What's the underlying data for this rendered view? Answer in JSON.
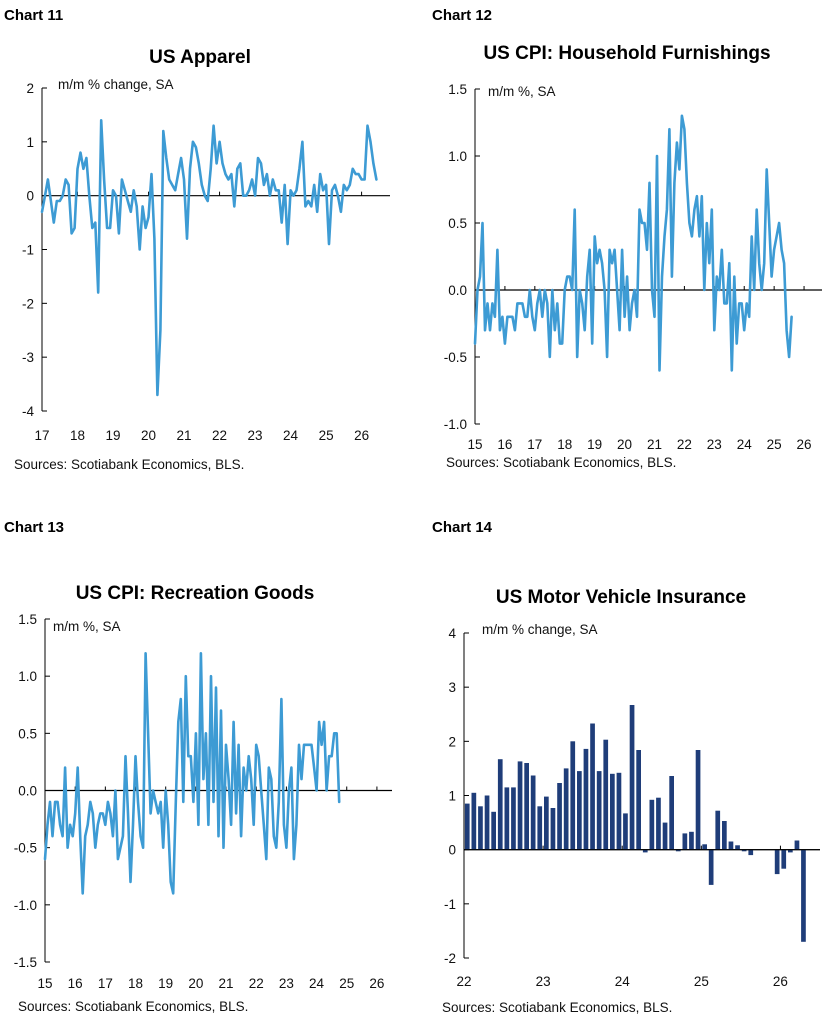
{
  "charts": [
    {
      "label": "Chart 11",
      "title": "US Apparel",
      "unit": "m/m % change, SA",
      "source": "Sources: Scotiabank Economics, BLS."
    },
    {
      "label": "Chart 12",
      "title": "US CPI: Household Furnishings",
      "unit": "m/m %, SA",
      "source": "Sources: Scotiabank Economics, BLS."
    },
    {
      "label": "Chart 13",
      "title": "US CPI: Recreation Goods",
      "unit": "m/m %, SA",
      "source": "Sources: Scotiabank Economics, BLS."
    },
    {
      "label": "Chart 14",
      "title": "US Motor Vehicle Insurance",
      "unit": "m/m % change, SA",
      "source": "Sources: Scotiabank Economics, BLS."
    }
  ],
  "chart_data": [
    {
      "type": "line",
      "title": "US Apparel",
      "ylabel": "m/m % change, SA",
      "color": "#3d9bd4",
      "ylim": [
        -4,
        2
      ],
      "yticks": [
        "2",
        "1",
        "0",
        "-1",
        "-2",
        "-3",
        "-4"
      ],
      "xlim": [
        2017,
        2026.8
      ],
      "xticks": [
        "17",
        "18",
        "19",
        "20",
        "21",
        "22",
        "23",
        "24",
        "25",
        "26"
      ],
      "x_start": 2017.0,
      "x_step_months": 1,
      "values": [
        -0.3,
        0.0,
        0.3,
        -0.1,
        -0.5,
        -0.1,
        -0.1,
        0.0,
        0.3,
        0.2,
        -0.7,
        -0.6,
        0.5,
        0.8,
        0.5,
        0.7,
        0.0,
        -0.6,
        -0.5,
        -1.8,
        1.4,
        0.3,
        -0.6,
        -0.6,
        0.1,
        0.0,
        -0.7,
        0.3,
        0.1,
        -0.1,
        -0.3,
        0.1,
        -0.2,
        -1.0,
        -0.2,
        -0.6,
        -0.4,
        0.4,
        -0.8,
        -3.7,
        -2.5,
        1.2,
        0.7,
        0.3,
        0.2,
        0.1,
        0.4,
        0.7,
        0.3,
        -0.8,
        0.5,
        1.0,
        0.9,
        0.6,
        0.2,
        0.0,
        -0.1,
        0.5,
        1.3,
        0.6,
        1.0,
        0.6,
        0.4,
        0.3,
        0.4,
        -0.2,
        0.5,
        0.6,
        0.0,
        0.0,
        0.1,
        0.3,
        0.0,
        0.7,
        0.6,
        0.2,
        0.4,
        0.0,
        0.3,
        0.1,
        0.1,
        -0.5,
        0.2,
        -0.9,
        0.1,
        0.0,
        0.1,
        0.5,
        1.0,
        -0.2,
        -0.1,
        -0.2,
        0.2,
        -0.3,
        0.4,
        0.1,
        0.2,
        -0.9,
        0.1,
        0.2,
        0.0,
        -0.3,
        0.2,
        0.1,
        0.2,
        0.5,
        0.4,
        0.4,
        0.3,
        0.3,
        1.3,
        1.0,
        0.6,
        0.3
      ]
    },
    {
      "type": "line",
      "title": "US CPI: Household Furnishings",
      "ylabel": "m/m %, SA",
      "color": "#3d9bd4",
      "ylim": [
        -1.0,
        1.5
      ],
      "yticks": [
        "1.5",
        "1.0",
        "0.5",
        "0.0",
        "-0.5",
        "-1.0"
      ],
      "xlim": [
        2015,
        2026.6
      ],
      "xticks": [
        "15",
        "16",
        "17",
        "18",
        "19",
        "20",
        "21",
        "22",
        "23",
        "24",
        "25",
        "26"
      ],
      "x_start": 2015.0,
      "x_step_months": 1,
      "values": [
        -0.4,
        0.0,
        0.1,
        0.5,
        -0.3,
        -0.1,
        -0.3,
        -0.1,
        -0.2,
        0.3,
        -0.3,
        -0.2,
        -0.4,
        -0.2,
        -0.2,
        -0.2,
        -0.3,
        -0.1,
        -0.1,
        -0.1,
        -0.2,
        -0.2,
        0.0,
        -0.2,
        -0.3,
        -0.1,
        0.0,
        -0.2,
        0.0,
        -0.1,
        -0.5,
        0.0,
        -0.3,
        -0.1,
        -0.4,
        -0.4,
        0.0,
        0.1,
        0.1,
        0.0,
        0.6,
        -0.5,
        0.0,
        -0.1,
        -0.3,
        0.1,
        0.3,
        -0.4,
        0.4,
        0.2,
        0.3,
        0.2,
        0.0,
        -0.5,
        0.3,
        0.2,
        0.3,
        0.0,
        -0.3,
        0.3,
        -0.2,
        0.1,
        -0.3,
        -0.1,
        0.0,
        -0.2,
        0.6,
        0.5,
        0.5,
        0.3,
        0.8,
        0.0,
        -0.2,
        1.0,
        -0.6,
        0.1,
        0.4,
        0.6,
        1.2,
        0.1,
        0.8,
        1.1,
        0.9,
        1.3,
        1.2,
        0.8,
        0.5,
        0.4,
        0.6,
        0.7,
        0.4,
        0.7,
        0.0,
        0.5,
        0.2,
        0.6,
        -0.3,
        0.1,
        0.0,
        0.3,
        -0.1,
        -0.1,
        0.2,
        -0.6,
        0.1,
        -0.4,
        -0.1,
        -0.1,
        -0.3,
        -0.1,
        -0.2,
        0.4,
        0.0,
        0.6,
        0.2,
        0.0,
        0.2,
        0.9,
        0.5,
        0.1,
        0.3,
        0.4,
        0.5,
        0.3,
        0.2,
        -0.3,
        -0.5,
        -0.2
      ]
    },
    {
      "type": "line",
      "title": "US CPI: Recreation Goods",
      "ylabel": "m/m %, SA",
      "color": "#3d9bd4",
      "ylim": [
        -1.5,
        1.5
      ],
      "yticks": [
        "1.5",
        "1.0",
        "0.5",
        "0.0",
        "-0.5",
        "-1.0",
        "-1.5"
      ],
      "xlim": [
        2015,
        2026.5
      ],
      "xticks": [
        "15",
        "16",
        "17",
        "18",
        "19",
        "20",
        "21",
        "22",
        "23",
        "24",
        "25",
        "26"
      ],
      "x_start": 2015.0,
      "x_step_months": 1,
      "values": [
        -0.6,
        -0.3,
        -0.1,
        -0.4,
        -0.1,
        -0.1,
        -0.3,
        -0.4,
        0.2,
        -0.5,
        -0.3,
        -0.4,
        -0.2,
        0.2,
        -0.4,
        -0.9,
        -0.4,
        -0.3,
        -0.1,
        -0.2,
        -0.5,
        -0.3,
        -0.2,
        -0.2,
        -0.3,
        -0.1,
        -0.2,
        -0.4,
        0.0,
        -0.6,
        -0.5,
        -0.4,
        0.3,
        -0.2,
        -0.8,
        -0.3,
        0.3,
        -0.1,
        -0.4,
        -0.5,
        1.2,
        0.5,
        -0.2,
        0.0,
        -0.1,
        -0.2,
        -0.1,
        -0.5,
        0.0,
        -0.3,
        -0.8,
        -0.9,
        -0.1,
        0.6,
        0.8,
        -0.1,
        1.0,
        0.3,
        0.3,
        -0.1,
        0.5,
        -0.3,
        1.2,
        0.1,
        0.5,
        -0.3,
        1.0,
        -0.1,
        0.9,
        -0.4,
        0.7,
        -0.5,
        0.4,
        0.1,
        -0.3,
        0.6,
        -0.2,
        0.4,
        -0.4,
        0.2,
        0.0,
        0.3,
        0.1,
        -0.3,
        0.4,
        0.3,
        0.0,
        -0.3,
        -0.6,
        0.2,
        0.1,
        -0.4,
        -0.5,
        -0.1,
        0.8,
        -0.3,
        -0.5,
        0.0,
        0.2,
        -0.6,
        -0.3,
        0.4,
        0.1,
        0.4,
        0.4,
        0.4,
        0.4,
        0.2,
        0.0,
        0.6,
        0.4,
        0.6,
        0.0,
        0.3,
        0.3,
        0.5,
        0.5,
        -0.1
      ]
    },
    {
      "type": "bar",
      "title": "US Motor Vehicle Insurance",
      "ylabel": "m/m % change, SA",
      "color": "#1f3d79",
      "ylim": [
        -2,
        4
      ],
      "yticks": [
        "4",
        "3",
        "2",
        "1",
        "0",
        "-1",
        "-2"
      ],
      "xlim": [
        2022,
        2026.5
      ],
      "xticks": [
        "22",
        "23",
        "24",
        "25",
        "26"
      ],
      "x_start": 2022.0,
      "x_step_months": 1,
      "values": [
        0.85,
        1.05,
        0.8,
        1.0,
        0.7,
        1.67,
        1.15,
        1.15,
        1.63,
        1.6,
        1.37,
        0.8,
        0.98,
        0.77,
        1.23,
        1.5,
        2.0,
        1.45,
        1.86,
        2.33,
        1.45,
        2.03,
        1.4,
        1.42,
        0.67,
        2.67,
        1.84,
        -0.05,
        0.92,
        0.96,
        0.5,
        1.36,
        -0.03,
        0.3,
        0.33,
        1.84,
        0.1,
        -0.65,
        0.72,
        0.53,
        0.15,
        0.08,
        -0.03,
        -0.1,
        0.0,
        0.0,
        0.0,
        -0.45,
        -0.35,
        -0.05,
        0.17,
        -1.7
      ]
    }
  ]
}
